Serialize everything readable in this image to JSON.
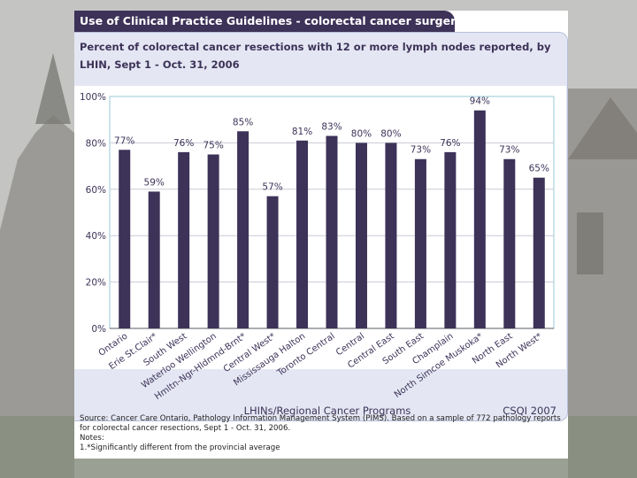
{
  "slide": {
    "title": "Use of Clinical Practice Guidelines - colorectal cancer surgery",
    "x_axis_caption": "LHINs/Regional Cancer Programs",
    "credit": "CSQI 2007",
    "footnote": {
      "source": "Source: Cancer Care Ontario, Pathology Information Management System (PIMS). Based on a sample of 772 pathology reports for colorectal cancer resections, Sept 1 - Oct. 31, 2006.",
      "notes_label": "Notes:",
      "note_1": "1.*Significantly different from the provincial average"
    }
  },
  "colors": {
    "bar": "#3d3258",
    "title_bg": "#3d3258",
    "gridline": "#c9ccd6",
    "axis_text": "#3d3258"
  },
  "chart_data": {
    "type": "bar",
    "title": "Percent of colorectal cancer resections with 12 or more lymph nodes reported, by LHIN, Sept 1 - Oct. 31, 2006",
    "xlabel": "LHINs/Regional Cancer Programs",
    "ylabel": "",
    "ylim": [
      0,
      100
    ],
    "yticks": [
      "0%",
      "20%",
      "40%",
      "60%",
      "80%",
      "100%"
    ],
    "ytick_values": [
      0,
      20,
      40,
      60,
      80,
      100
    ],
    "categories": [
      "Ontario",
      "Erie St.Clair*",
      "South West",
      "Waterloo Wellington",
      "Hmltn-Ngr-Hldmnd-Brnt*",
      "Central West*",
      "Mississauga Halton",
      "Toronto Central",
      "Central",
      "Central East",
      "South East",
      "Champlain",
      "North Simcoe Muskoka*",
      "North East",
      "North West*"
    ],
    "values": [
      77,
      59,
      76,
      75,
      85,
      57,
      81,
      83,
      80,
      80,
      73,
      76,
      94,
      73,
      65
    ],
    "value_labels": [
      "77%",
      "59%",
      "76%",
      "75%",
      "85%",
      "57%",
      "81%",
      "83%",
      "80%",
      "80%",
      "73%",
      "76%",
      "94%",
      "73%",
      "65%"
    ],
    "grid": true
  }
}
